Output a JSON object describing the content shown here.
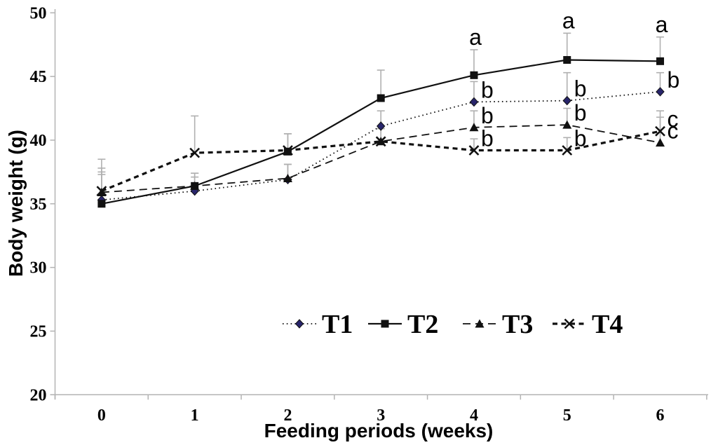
{
  "chart_data": {
    "type": "line",
    "title": "",
    "xlabel": "Feeding periods (weeks)",
    "ylabel": "Body weight (g)",
    "x": [
      0,
      1,
      2,
      3,
      4,
      5,
      6
    ],
    "xlim": [
      0,
      6
    ],
    "ylim": [
      20,
      50
    ],
    "yticks": [
      20,
      25,
      30,
      35,
      40,
      45,
      50
    ],
    "grid": false,
    "legend_position": "inside-bottom-center",
    "series": [
      {
        "name": "T1",
        "marker": "diamond",
        "line_style": "dotted",
        "values": [
          35.3,
          36.0,
          36.9,
          41.1,
          43.0,
          43.1,
          43.8
        ],
        "errors_up": [
          2.2,
          1.1,
          1.2,
          1.2,
          1.6,
          2.2,
          1.5
        ]
      },
      {
        "name": "T2",
        "marker": "square",
        "line_style": "solid",
        "values": [
          35.0,
          36.4,
          39.1,
          43.3,
          45.1,
          46.3,
          46.2
        ],
        "errors_up": [
          2.3,
          1.0,
          1.4,
          2.2,
          2.0,
          2.1,
          1.9
        ]
      },
      {
        "name": "T3",
        "marker": "triangle",
        "line_style": "dashed",
        "values": [
          35.9,
          36.4,
          37.0,
          39.9,
          41.0,
          41.2,
          39.8
        ],
        "errors_up": [
          1.9,
          1.0,
          1.1,
          1.0,
          1.3,
          1.3,
          2.0
        ]
      },
      {
        "name": "T4",
        "marker": "x-cross",
        "line_style": "bold-dashed",
        "values": [
          36.0,
          39.0,
          39.2,
          39.9,
          39.2,
          39.2,
          40.7
        ],
        "errors_up": [
          2.5,
          2.9,
          1.3,
          1.0,
          0.9,
          1.0,
          1.6
        ]
      }
    ],
    "annotations": [
      {
        "series": "T2",
        "week": 4,
        "label": "a",
        "placement": "above-error"
      },
      {
        "series": "T1",
        "week": 4,
        "label": "b",
        "placement": "beside"
      },
      {
        "series": "T3",
        "week": 4,
        "label": "b",
        "placement": "beside"
      },
      {
        "series": "T4",
        "week": 4,
        "label": "b",
        "placement": "beside"
      },
      {
        "series": "T2",
        "week": 5,
        "label": "a",
        "placement": "above-error"
      },
      {
        "series": "T1",
        "week": 5,
        "label": "b",
        "placement": "beside"
      },
      {
        "series": "T3",
        "week": 5,
        "label": "b",
        "placement": "beside"
      },
      {
        "series": "T4",
        "week": 5,
        "label": "b",
        "placement": "beside"
      },
      {
        "series": "T2",
        "week": 6,
        "label": "a",
        "placement": "above-error"
      },
      {
        "series": "T1",
        "week": 6,
        "label": "b",
        "placement": "beside"
      },
      {
        "series": "T4",
        "week": 6,
        "label": "c",
        "placement": "beside"
      },
      {
        "series": "T3",
        "week": 6,
        "label": "c",
        "placement": "beside"
      }
    ]
  },
  "colors": {
    "background": "#ffffff",
    "line": "#111111",
    "marker_fill": "#111111",
    "diamond_fill": "#28256b",
    "error_bar": "#b0b0b0",
    "axis": "#b3b3b3",
    "text": "#000000"
  }
}
